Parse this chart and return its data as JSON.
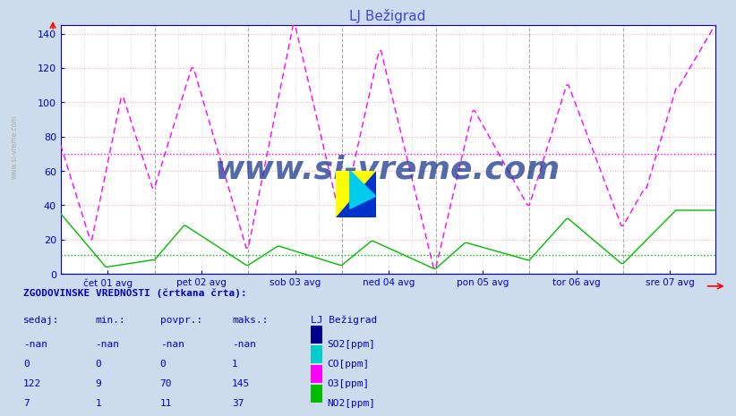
{
  "title": "LJ Bežigrad",
  "title_color": "#4444dd",
  "bg_color": "#ccdcec",
  "plot_bg_color": "#ffffff",
  "ylim": [
    0,
    145
  ],
  "yticks": [
    0,
    20,
    40,
    60,
    80,
    100,
    120,
    140
  ],
  "x_labels": [
    "čet 01 avg",
    "pet 02 avg",
    "sob 03 avg",
    "ned 04 avg",
    "pon 05 avg",
    "tor 06 avg",
    "sre 07 avg"
  ],
  "n_points": 336,
  "o3_color": "#ff00ff",
  "no2_color": "#00bb00",
  "so2_color": "#000088",
  "co_color": "#00cccc",
  "avg_o3": 70,
  "avg_no2": 11,
  "watermark": "www.si-vreme.com",
  "watermark_color": "#1a3a8f",
  "table_header": "ZGODOVINSKE VREDNOSTI (črtkana črta):",
  "table_col_headers": [
    "sedaj:",
    "min.:",
    "povpr.:",
    "maks.:",
    "LJ Bežigrad"
  ],
  "table_data": [
    [
      "-nan",
      "-nan",
      "-nan",
      "-nan",
      "SO2[ppm]",
      "#000088"
    ],
    [
      "0",
      "0",
      "0",
      "1",
      "CO[ppm]",
      "#00cccc"
    ],
    [
      "122",
      "9",
      "70",
      "145",
      "O3[ppm]",
      "#ff00ff"
    ],
    [
      "7",
      "1",
      "11",
      "37",
      "NO2[ppm]",
      "#00bb00"
    ]
  ]
}
